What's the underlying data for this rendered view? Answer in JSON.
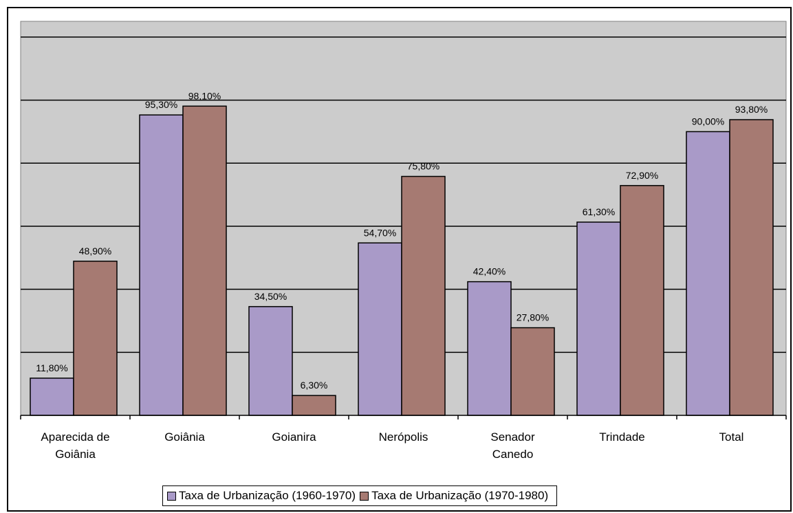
{
  "chart_data": {
    "type": "bar",
    "categories": [
      [
        "Aparecida de",
        "Goiânia"
      ],
      [
        "Goiânia"
      ],
      [
        "Goianira"
      ],
      [
        "Nerópolis"
      ],
      [
        "Senador",
        "Canedo"
      ],
      [
        "Trindade"
      ],
      [
        "Total"
      ]
    ],
    "series": [
      {
        "name": "Taxa de Urbanização (1960-1970)",
        "color": "#a99ac8",
        "values": [
          11.8,
          95.3,
          34.5,
          54.7,
          42.4,
          61.3,
          90.0
        ],
        "labels": [
          "11,80%",
          "95,30%",
          "34,50%",
          "54,70%",
          "42,40%",
          "61,30%",
          "90,00%"
        ]
      },
      {
        "name": "Taxa de Urbanização (1970-1980)",
        "color": "#a67a72",
        "values": [
          48.9,
          98.1,
          6.3,
          75.8,
          27.8,
          72.9,
          93.8
        ],
        "labels": [
          "48,90%",
          "98,10%",
          "6,30%",
          "75,80%",
          "27,80%",
          "72,90%",
          "93,80%"
        ]
      }
    ],
    "ylim": [
      0,
      125
    ],
    "grid": true,
    "plot_background": "#cccccc",
    "legend_position": "bottom"
  }
}
